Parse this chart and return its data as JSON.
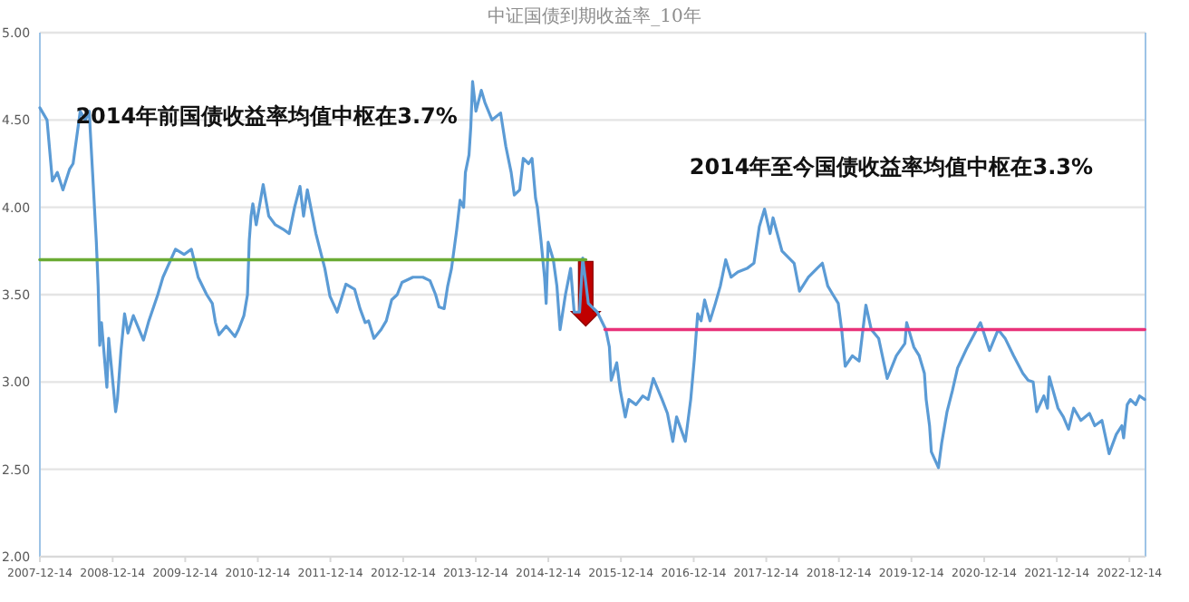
{
  "chart_data": {
    "type": "line",
    "title": "中证国债到期收益率_10年",
    "xlim": [
      "2007-12-14",
      "2023-03-05"
    ],
    "xticks": [
      "2007-12-14",
      "2008-12-14",
      "2009-12-14",
      "2010-12-14",
      "2011-12-14",
      "2012-12-14",
      "2013-12-14",
      "2014-12-14",
      "2015-12-14",
      "2016-12-14",
      "2017-12-14",
      "2018-12-14",
      "2019-12-14",
      "2020-12-14",
      "2021-12-14",
      "2022-12-14"
    ],
    "ylim": [
      2,
      5
    ],
    "yticks": [
      {
        "value": 2,
        "label": "2.00"
      },
      {
        "value": 2.5,
        "label": "2.50"
      },
      {
        "value": 3,
        "label": "3.00"
      },
      {
        "value": 3.5,
        "label": "3.50"
      },
      {
        "value": 4,
        "label": "4.00"
      },
      {
        "value": 4.5,
        "label": "4.50"
      },
      {
        "value": 5,
        "label": "5.00"
      }
    ],
    "grid": "y",
    "annotations": [
      "2014年前国债收益率均值中枢在3.7%",
      "2014年至今国债收益率均值中枢在3.3%"
    ],
    "series": [
      {
        "color": "#5b9bd5",
        "x": [
          "2007-12-14",
          "2008-01-19",
          "2008-02-15",
          "2008-03-11",
          "2008-04-08",
          "2008-05-12",
          "2008-05-29",
          "2008-07-04",
          "2008-07-30",
          "2008-08-18",
          "2008-09-04",
          "2008-09-23",
          "2008-10-02",
          "2008-10-10",
          "2008-10-19",
          "2008-11-15",
          "2008-11-24",
          "2008-12-29",
          "2009-01-07",
          "2009-01-25",
          "2009-02-12",
          "2009-03-01",
          "2009-03-28",
          "2009-05-18",
          "2009-06-14",
          "2009-07-29",
          "2009-08-24",
          "2009-10-26",
          "2009-12-08",
          "2010-01-14",
          "2010-02-17",
          "2010-04-01",
          "2010-04-29",
          "2010-05-15",
          "2010-06-02",
          "2010-07-08",
          "2010-08-21",
          "2010-09-08",
          "2010-10-05",
          "2010-10-23",
          "2010-11-01",
          "2010-11-10",
          "2010-11-19",
          "2010-12-06",
          "2011-01-10",
          "2011-02-07",
          "2011-03-12",
          "2011-04-26",
          "2011-05-21",
          "2011-06-17",
          "2011-07-14",
          "2011-08-01",
          "2011-08-20",
          "2011-10-02",
          "2011-11-16",
          "2011-12-12",
          "2012-01-17",
          "2012-03-01",
          "2012-04-14",
          "2012-05-11",
          "2012-06-06",
          "2012-06-23",
          "2012-07-20",
          "2012-08-25",
          "2012-09-20",
          "2012-10-17",
          "2012-11-14",
          "2012-12-08",
          "2013-02-01",
          "2013-03-23",
          "2013-04-28",
          "2013-05-26",
          "2013-06-12",
          "2013-07-08",
          "2013-07-26",
          "2013-08-14",
          "2013-09-09",
          "2013-09-26",
          "2013-10-14",
          "2013-10-23",
          "2013-11-10",
          "2013-11-19",
          "2013-11-28",
          "2013-12-15",
          "2014-01-11",
          "2014-01-29",
          "2014-03-06",
          "2014-04-18",
          "2014-05-14",
          "2014-06-10",
          "2014-06-26",
          "2014-07-23",
          "2014-08-10",
          "2014-09-06",
          "2014-09-23",
          "2014-10-11",
          "2014-10-20",
          "2014-11-07",
          "2014-11-25",
          "2014-12-03",
          "2014-12-13",
          "2015-01-08",
          "2015-01-26",
          "2015-02-11",
          "2015-03-10",
          "2015-04-05",
          "2015-04-23",
          "2015-05-20",
          "2015-06-05",
          "2015-07-03",
          "2015-08-17",
          "2015-09-29",
          "2015-10-17",
          "2015-10-26",
          "2015-11-23",
          "2015-12-11",
          "2016-01-05",
          "2016-01-23",
          "2016-02-28",
          "2016-04-02",
          "2016-04-29",
          "2016-05-25",
          "2016-07-08",
          "2016-08-04",
          "2016-08-31",
          "2016-09-19",
          "2016-11-02",
          "2016-11-29",
          "2016-12-17",
          "2017-01-03",
          "2017-01-20",
          "2017-02-07",
          "2017-03-06",
          "2017-04-02",
          "2017-04-27",
          "2017-05-24",
          "2017-06-20",
          "2017-07-24",
          "2017-09-08",
          "2017-10-13",
          "2017-11-09",
          "2017-12-05",
          "2018-01-02",
          "2018-01-17",
          "2018-03-03",
          "2018-05-03",
          "2018-05-30",
          "2018-07-14",
          "2018-08-26",
          "2018-09-22",
          "2018-10-19",
          "2018-11-14",
          "2018-12-11",
          "2018-12-29",
          "2019-01-15",
          "2019-02-20",
          "2019-03-26",
          "2019-04-13",
          "2019-04-29",
          "2019-05-26",
          "2019-07-02",
          "2019-08-14",
          "2019-09-29",
          "2019-11-11",
          "2019-11-20",
          "2019-12-26",
          "2020-01-22",
          "2020-02-17",
          "2020-02-26",
          "2020-03-14",
          "2020-03-23",
          "2020-04-28",
          "2020-05-14",
          "2020-06-10",
          "2020-07-07",
          "2020-08-02",
          "2020-09-16",
          "2020-11-25",
          "2021-01-10",
          "2021-02-22",
          "2021-03-29",
          "2021-05-11",
          "2021-06-26",
          "2021-07-23",
          "2021-08-17",
          "2021-09-04",
          "2021-10-10",
          "2021-10-28",
          "2021-11-06",
          "2021-12-20",
          "2022-01-16",
          "2022-02-11",
          "2022-03-09",
          "2022-04-14",
          "2022-05-27",
          "2022-06-23",
          "2022-07-29",
          "2022-09-03",
          "2022-10-09",
          "2022-11-06",
          "2022-11-15",
          "2022-12-03",
          "2022-12-19",
          "2023-01-15",
          "2023-02-03",
          "2023-03-01"
        ],
        "values": [
          4.57,
          4.5,
          4.15,
          4.2,
          4.1,
          4.22,
          4.25,
          4.55,
          4.5,
          4.55,
          4.2,
          3.8,
          3.55,
          3.21,
          3.34,
          2.97,
          3.25,
          2.83,
          2.9,
          3.18,
          3.39,
          3.28,
          3.38,
          3.24,
          3.35,
          3.5,
          3.6,
          3.76,
          3.73,
          3.76,
          3.6,
          3.5,
          3.45,
          3.34,
          3.27,
          3.32,
          3.26,
          3.3,
          3.38,
          3.5,
          3.81,
          3.95,
          4.02,
          3.9,
          4.13,
          3.95,
          3.9,
          3.87,
          3.85,
          4.0,
          4.12,
          3.95,
          4.1,
          3.85,
          3.65,
          3.49,
          3.4,
          3.56,
          3.53,
          3.42,
          3.34,
          3.35,
          3.25,
          3.3,
          3.35,
          3.47,
          3.5,
          3.57,
          3.6,
          3.6,
          3.58,
          3.5,
          3.43,
          3.42,
          3.55,
          3.65,
          3.87,
          4.04,
          4.0,
          4.2,
          4.3,
          4.46,
          4.72,
          4.55,
          4.67,
          4.6,
          4.5,
          4.54,
          4.35,
          4.2,
          4.07,
          4.1,
          4.28,
          4.25,
          4.28,
          4.05,
          4.0,
          3.81,
          3.6,
          3.45,
          3.8,
          3.7,
          3.55,
          3.3,
          3.5,
          3.65,
          3.4,
          3.4,
          3.71,
          3.45,
          3.4,
          3.3,
          3.2,
          3.01,
          3.11,
          2.95,
          2.8,
          2.9,
          2.87,
          2.92,
          2.9,
          3.02,
          2.9,
          2.82,
          2.66,
          2.8,
          2.66,
          2.9,
          3.13,
          3.39,
          3.35,
          3.47,
          3.35,
          3.45,
          3.55,
          3.7,
          3.6,
          3.63,
          3.65,
          3.68,
          3.89,
          3.99,
          3.85,
          3.94,
          3.75,
          3.68,
          3.52,
          3.6,
          3.65,
          3.68,
          3.55,
          3.5,
          3.45,
          3.29,
          3.09,
          3.15,
          3.12,
          3.29,
          3.44,
          3.3,
          3.25,
          3.02,
          3.15,
          3.22,
          3.34,
          3.2,
          3.15,
          3.05,
          2.9,
          2.75,
          2.6,
          2.51,
          2.65,
          2.83,
          2.95,
          3.08,
          3.19,
          3.34,
          3.18,
          3.3,
          3.25,
          3.15,
          3.05,
          3.01,
          3.0,
          2.83,
          2.92,
          2.85,
          3.03,
          2.85,
          2.8,
          2.73,
          2.85,
          2.78,
          2.82,
          2.75,
          2.78,
          2.59,
          2.7,
          2.75,
          2.68,
          2.87,
          2.9,
          2.87,
          2.92,
          2.9
        ]
      },
      {
        "color": "#6aab33",
        "x": [
          "2007-12-14",
          "2015-06-20"
        ],
        "values": [
          3.7,
          3.7
        ]
      },
      {
        "color": "#e8327a",
        "x": [
          "2015-09-25",
          "2023-03-01"
        ],
        "values": [
          3.3,
          3.3
        ]
      }
    ]
  }
}
